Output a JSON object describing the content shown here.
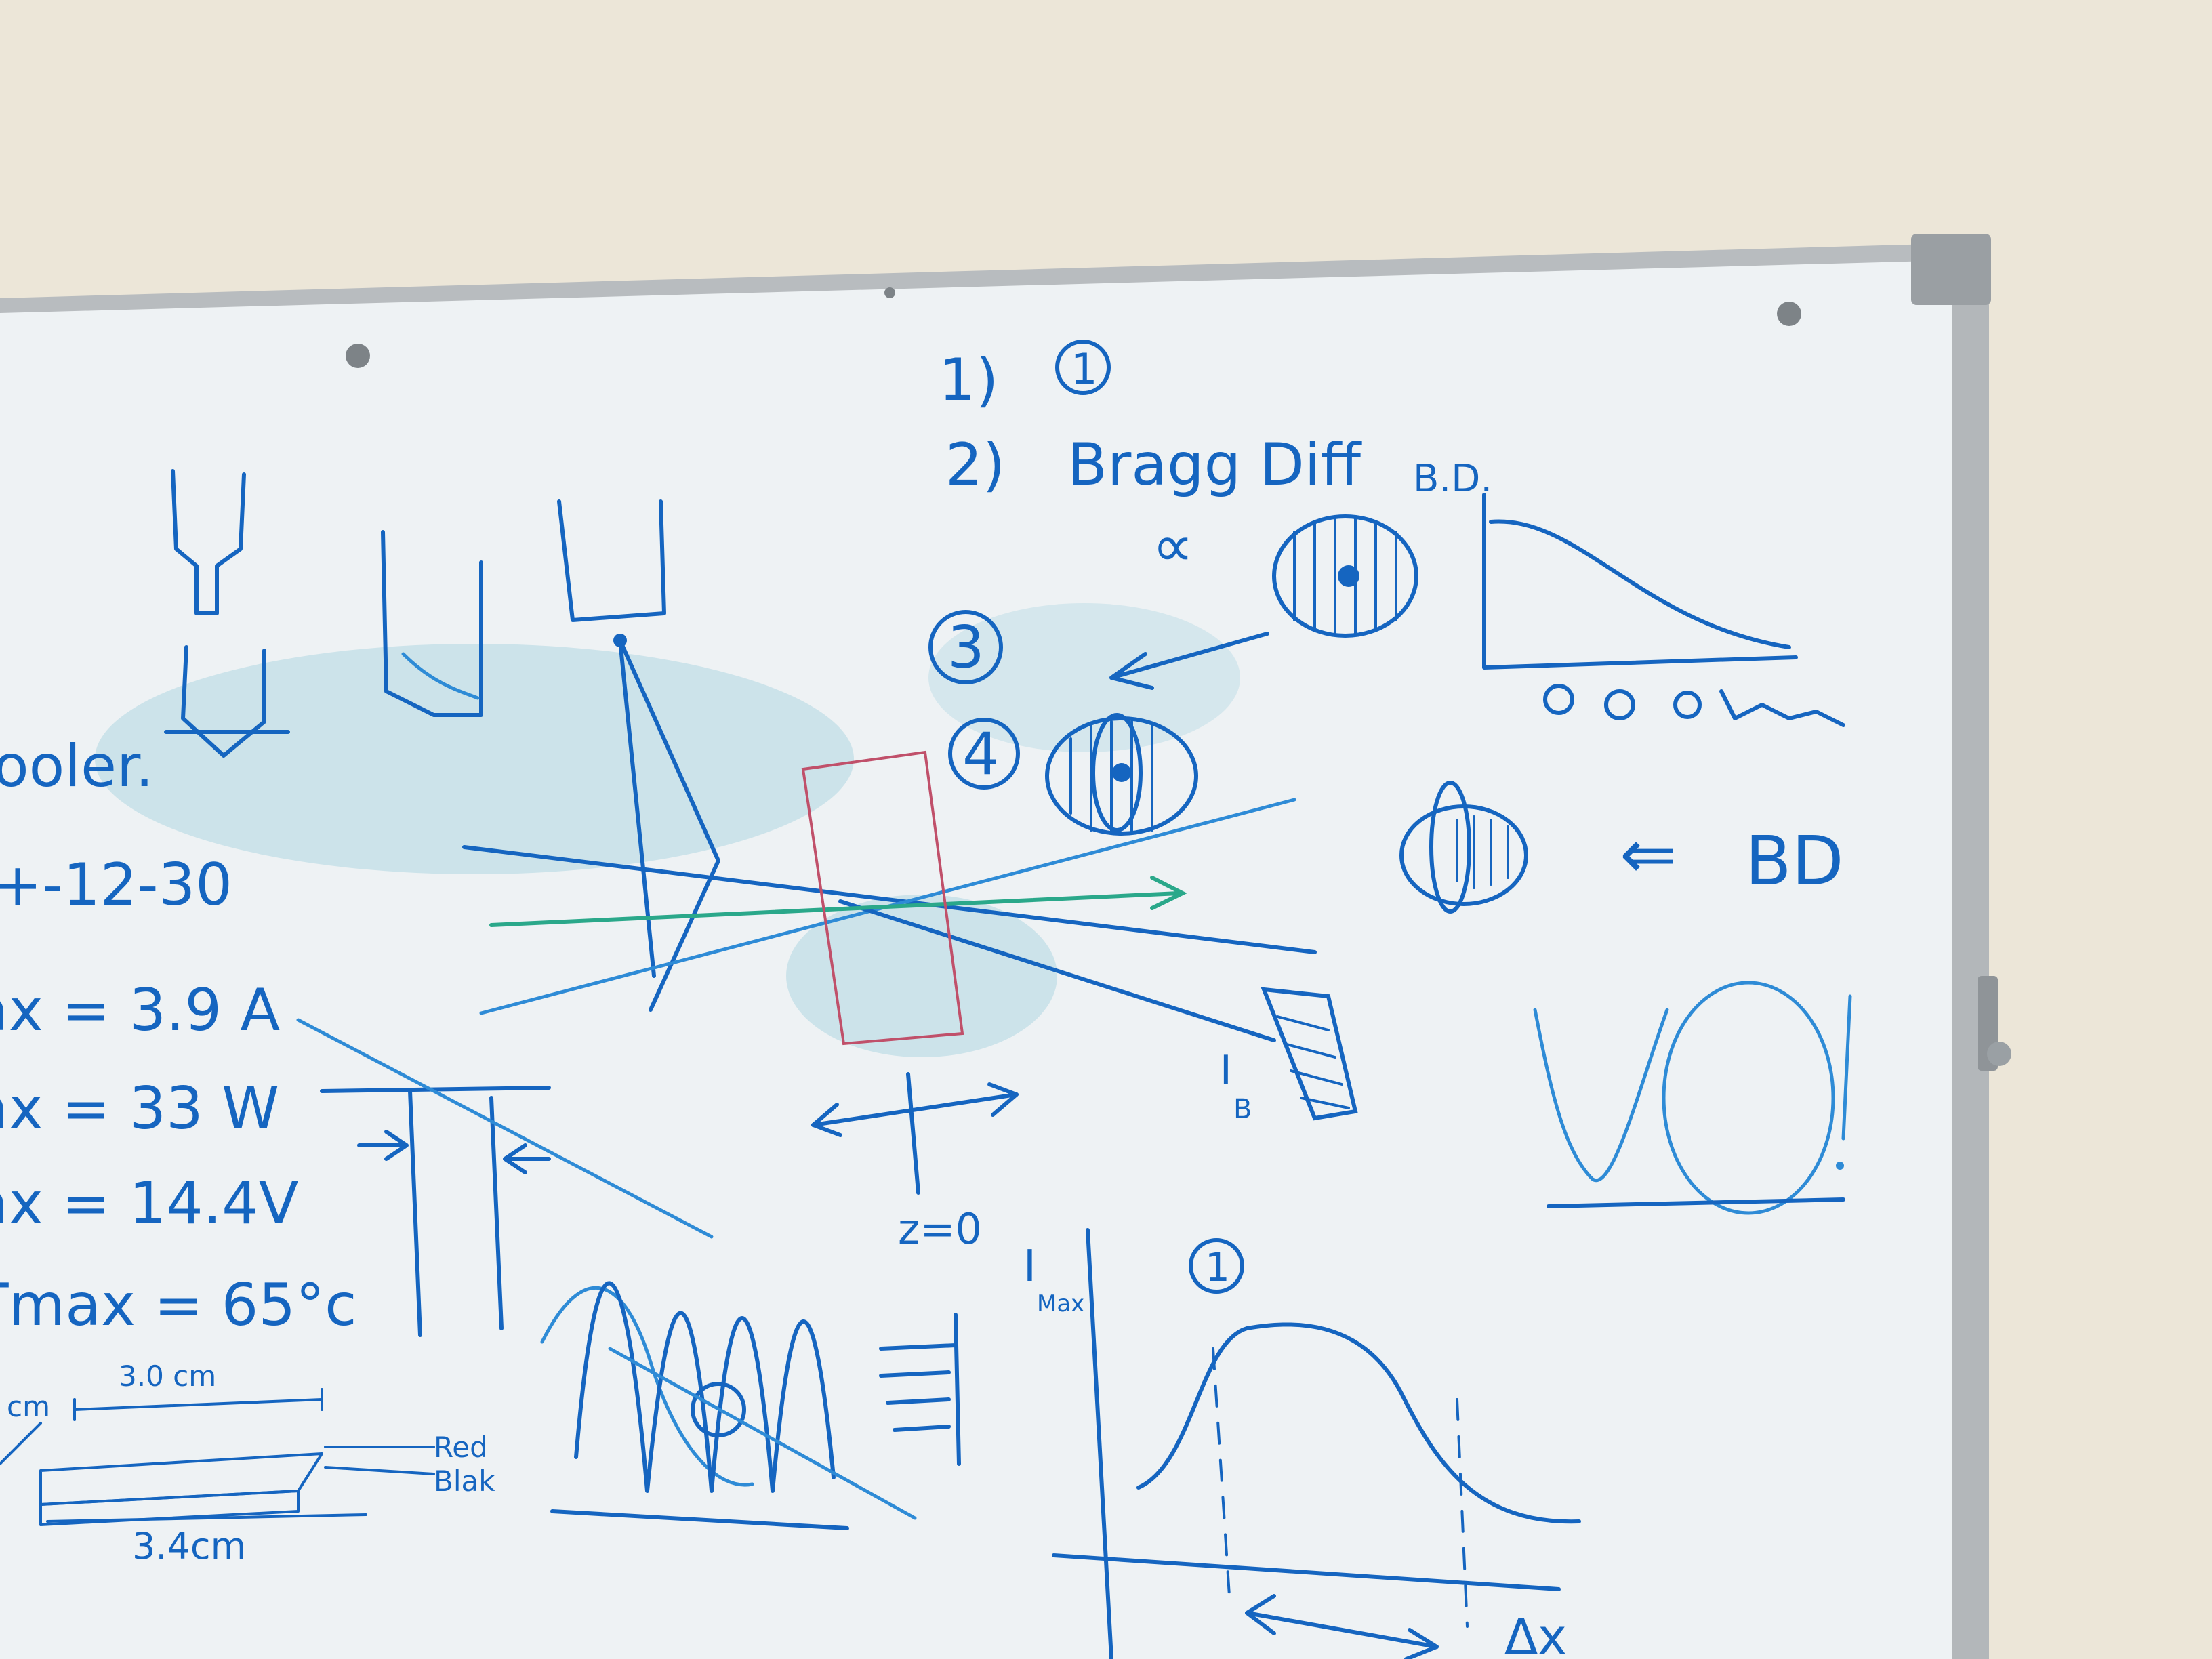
{
  "scene": {
    "wall_color": "#ece6d8",
    "board_color": "#eef2f4",
    "frame_color": "#b8bcbf",
    "marker_color": "#1565c0",
    "green_marker_color": "#2aa88a",
    "red_marker_color": "#c0506a",
    "smudge_color": "#8cc9d8"
  },
  "board_text": {
    "list_1": "1)",
    "list_1_circled": "1",
    "list_2": "2)",
    "bragg_diff": "Bragg Diff",
    "alpha": "∝",
    "list_3": "3",
    "list_4": "4",
    "bd_axis": "B.D.",
    "bd_arrow": "⇐",
    "bd": "BD",
    "cooler": "ooler.",
    "part_no": "+-12-30",
    "imax": "ax = 3.9 A",
    "pmax": "ax = 33 W",
    "vmax": "ax = 14.4V",
    "tmax": "Tmax = 65°c",
    "dim_3_0": "3.0 cm",
    "dim_3_4": "3.4cm",
    "dim_cm": "cm",
    "wire_red": "Red",
    "wire_black": "Blak",
    "z0": "z=0",
    "ib": "I",
    "ib_sub": "B",
    "imax_axis": "I",
    "imax_axis_sub": "Max",
    "circled_1b": "1",
    "dx": "Δx"
  }
}
